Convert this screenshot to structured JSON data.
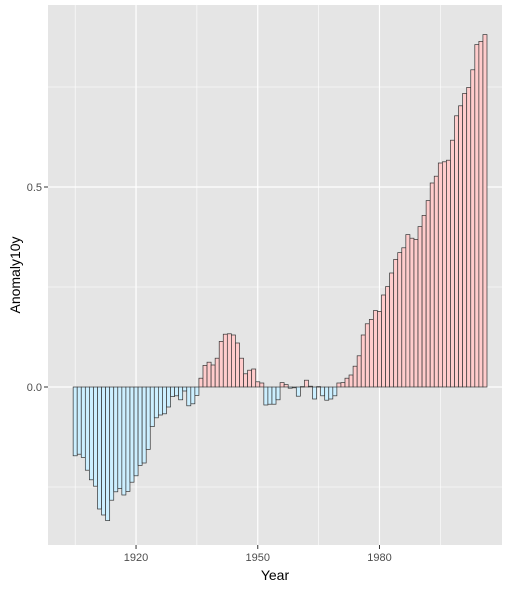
{
  "chart_data": {
    "type": "bar",
    "title": "",
    "xlabel": "Year",
    "ylabel": "Anomaly10y",
    "xlim": [
      1898.3,
      2010.2
    ],
    "ylim": [
      -0.395,
      0.955
    ],
    "x_ticks": [
      1920,
      1950,
      1980
    ],
    "y_ticks": [
      0.0,
      0.5
    ],
    "y_tick_labels": [
      "0.0",
      "0.5"
    ],
    "grid": true,
    "legend": "none",
    "colors": {
      "panel_bg": "#e5e5e5",
      "grid": "#ffffff",
      "bar_outline": "#333333",
      "negative_fill": "#ccefff",
      "positive_fill": "#ffcccc"
    },
    "series": [
      {
        "start_year": 1905,
        "values": [
          -0.172,
          -0.168,
          -0.176,
          -0.208,
          -0.232,
          -0.248,
          -0.305,
          -0.32,
          -0.334,
          -0.283,
          -0.262,
          -0.254,
          -0.27,
          -0.261,
          -0.238,
          -0.222,
          -0.196,
          -0.19,
          -0.156,
          -0.099,
          -0.077,
          -0.07,
          -0.067,
          -0.05,
          -0.024,
          -0.022,
          -0.032,
          -0.01,
          -0.047,
          -0.042,
          -0.021,
          0.022,
          0.054,
          0.062,
          0.055,
          0.072,
          0.114,
          0.132,
          0.133,
          0.13,
          0.11,
          0.072,
          0.033,
          0.042,
          0.045,
          0.013,
          0.01,
          -0.045,
          -0.043,
          -0.043,
          -0.032,
          0.011,
          0.006,
          -0.003,
          -0.002,
          -0.023,
          0.001,
          0.017,
          0.002,
          -0.03,
          0.001,
          -0.022,
          -0.033,
          -0.03,
          -0.022,
          0.01,
          0.011,
          0.022,
          0.03,
          0.052,
          0.078,
          0.13,
          0.158,
          0.169,
          0.191,
          0.189,
          0.23,
          0.251,
          0.285,
          0.319,
          0.336,
          0.348,
          0.381,
          0.372,
          0.369,
          0.401,
          0.429,
          0.466,
          0.51,
          0.527,
          0.56,
          0.563,
          0.567,
          0.617,
          0.678,
          0.703,
          0.734,
          0.749,
          0.793,
          0.856,
          0.864,
          0.881
        ]
      }
    ]
  }
}
